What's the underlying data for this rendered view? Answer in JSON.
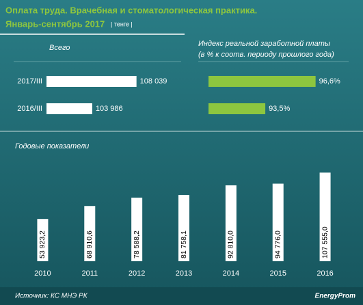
{
  "header": {
    "title_line1": "Оплата труда. Врачебная и стоматологическая практика.",
    "title_line2": "Январь-сентябрь 2017",
    "unit": "| тенге |"
  },
  "chart_data": [
    {
      "type": "hbar",
      "title": "Всего",
      "categories": [
        "2017/III",
        "2016/III"
      ],
      "values": [
        108039,
        103986
      ],
      "value_labels": [
        "108 039",
        "103 986"
      ],
      "color": "#ffffff",
      "xlim": [
        99800,
        110000
      ]
    },
    {
      "type": "hbar",
      "title": "Индекс реальной заработной платы",
      "subtitle": "(в % к соотв. периоду прошлого года)",
      "values": [
        96.6,
        93.5
      ],
      "value_labels": [
        "96,6%",
        "93,5%"
      ],
      "color": "#8dc63f",
      "xlim": [
        90,
        97.5
      ]
    },
    {
      "type": "bar",
      "title": "Годовые показатели",
      "categories": [
        "2010",
        "2011",
        "2012",
        "2013",
        "2014",
        "2015",
        "2016"
      ],
      "values": [
        53923.2,
        68910.6,
        78588.2,
        81758.1,
        92810.0,
        94776.0,
        107555.0
      ],
      "value_labels": [
        "53 923,2",
        "68 910,6",
        "78 588,2",
        "81 758,1",
        "92 810,0",
        "94 776,0",
        "107 555,0"
      ],
      "color": "#ffffff",
      "ylim": [
        5000,
        115000
      ]
    }
  ],
  "source": "Источник: КС МНЭ РК",
  "logo": "EnergyProm"
}
